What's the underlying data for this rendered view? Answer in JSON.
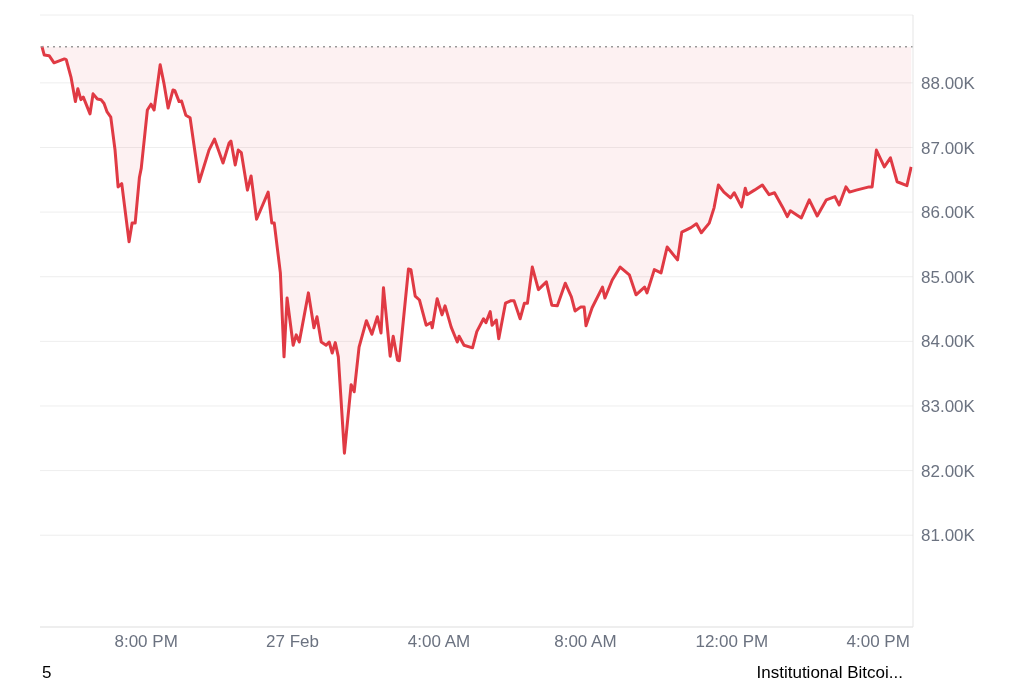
{
  "chart_data": {
    "type": "line",
    "xlim": [
      "--02-26T17:06",
      "--02-27T16:57"
    ],
    "ylim": [
      79580,
      89050
    ],
    "xticks": [
      {
        "value": "--02-26T20:00",
        "label": "8:00 PM"
      },
      {
        "value": "--02-27T00:00",
        "label": "27 Feb"
      },
      {
        "value": "--02-27T04:00",
        "label": "4:00 AM"
      },
      {
        "value": "--02-27T08:00",
        "label": "8:00 AM"
      },
      {
        "value": "--02-27T12:00",
        "label": "12:00 PM"
      },
      {
        "value": "--02-27T16:00",
        "label": "4:00 PM"
      }
    ],
    "yticks": [
      {
        "value": 81000,
        "label": "81.00K"
      },
      {
        "value": 82000,
        "label": "82.00K"
      },
      {
        "value": 83000,
        "label": "83.00K"
      },
      {
        "value": 84000,
        "label": "84.00K"
      },
      {
        "value": 85000,
        "label": "85.00K"
      },
      {
        "value": 86000,
        "label": "86.00K"
      },
      {
        "value": 87000,
        "label": "87.00K"
      },
      {
        "value": 88000,
        "label": "88.00K"
      }
    ],
    "grid": "y",
    "legend": false,
    "marker": "none",
    "line_style": "solid",
    "ref_lines": [
      {
        "axis": "y",
        "value": 88560,
        "color": "#999999",
        "line_style": "dotted"
      }
    ],
    "annotations": [
      "5",
      "Institutional Bitcoi..."
    ],
    "x": [
      "--02-26T17:09",
      "--02-26T17:13",
      "--02-26T17:21",
      "--02-26T17:29",
      "--02-26T17:46",
      "--02-26T17:49",
      "--02-26T17:57",
      "--02-26T18:04",
      "--02-26T18:08",
      "--02-26T18:13",
      "--02-26T18:17",
      "--02-26T18:28",
      "--02-26T18:33",
      "--02-26T18:40",
      "--02-26T18:46",
      "--02-26T18:51",
      "--02-26T18:56",
      "--02-26T19:02",
      "--02-26T19:09",
      "--02-26T19:14",
      "--02-26T19:20",
      "--02-26T19:32",
      "--02-26T19:37",
      "--02-26T19:42",
      "--02-26T19:49",
      "--02-26T19:52",
      "--02-26T20:02",
      "--02-26T20:08",
      "--02-26T20:13",
      "--02-26T20:23",
      "--02-26T20:29",
      "--02-26T20:36",
      "--02-26T20:44",
      "--02-26T20:47",
      "--02-26T20:54",
      "--02-26T20:58",
      "--02-26T21:05",
      "--02-26T21:12",
      "--02-26T21:27",
      "--02-26T21:43",
      "--02-26T21:52",
      "--02-26T22:06",
      "--02-26T22:16",
      "--02-26T22:19",
      "--02-26T22:26",
      "--02-26T22:31",
      "--02-26T22:36",
      "--02-26T22:46",
      "--02-26T22:52",
      "--02-26T23:01",
      "--02-26T23:20",
      "--02-26T23:26",
      "--02-26T23:30",
      "--02-26T23:40",
      "--02-26T23:46",
      "--02-26T23:51",
      "--02-27T00:01",
      "--02-27T00:06",
      "--02-27T00:11",
      "--02-27T00:26",
      "--02-27T00:35",
      "--02-27T00:40",
      "--02-27T00:47",
      "--02-27T00:55",
      "--02-27T01:00",
      "--02-27T01:05",
      "--02-27T01:10",
      "--02-27T01:15",
      "--02-27T01:25",
      "--02-27T01:36",
      "--02-27T01:41",
      "--02-27T01:49",
      "--02-27T02:01",
      "--02-27T02:10",
      "--02-27T02:19",
      "--02-27T02:25",
      "--02-27T02:29",
      "--02-27T02:40",
      "--02-27T02:45",
      "--02-27T02:52",
      "--02-27T02:55",
      "--02-27T03:10",
      "--02-27T03:14",
      "--02-27T03:21",
      "--02-27T03:28",
      "--02-27T03:39",
      "--02-27T03:47",
      "--02-27T03:49",
      "--02-27T03:57",
      "--02-27T04:05",
      "--02-27T04:10",
      "--02-27T04:20",
      "--02-27T04:30",
      "--02-27T04:33",
      "--02-27T04:41",
      "--02-27T04:55",
      "--02-27T05:02",
      "--02-27T05:13",
      "--02-27T05:17",
      "--02-27T05:24",
      "--02-27T05:27",
      "--02-27T05:34",
      "--02-27T05:38",
      "--02-27T05:49",
      "--02-27T05:58",
      "--02-27T06:03",
      "--02-27T06:13",
      "--02-27T06:20",
      "--02-27T06:25",
      "--02-27T06:33",
      "--02-27T06:43",
      "--02-27T06:56",
      "--02-27T07:05",
      "--02-27T07:14",
      "--02-27T07:27",
      "--02-27T07:37",
      "--02-27T07:43",
      "--02-27T07:52",
      "--02-27T07:58",
      "--02-27T08:01",
      "--02-27T08:11",
      "--02-27T08:28",
      "--02-27T08:32",
      "--02-27T08:44",
      "--02-27T08:57",
      "--02-27T09:12",
      "--02-27T09:23",
      "--02-27T09:37",
      "--02-27T09:41",
      "--02-27T09:53",
      "--02-27T10:04",
      "--02-27T10:14",
      "--02-27T10:31",
      "--02-27T10:38",
      "--02-27T10:53",
      "--02-27T11:02",
      "--02-27T11:10",
      "--02-27T11:23",
      "--02-27T11:31",
      "--02-27T11:38",
      "--02-27T11:47",
      "--02-27T11:58",
      "--02-27T12:04",
      "--02-27T12:16",
      "--02-27T12:22",
      "--02-27T12:25",
      "--02-27T12:37",
      "--02-27T12:50",
      "--02-27T13:01",
      "--02-27T13:10",
      "--02-27T13:23",
      "--02-27T13:31",
      "--02-27T13:36",
      "--02-27T13:54",
      "--02-27T14:07",
      "--02-27T14:20",
      "--02-27T14:35",
      "--02-27T14:49",
      "--02-27T14:56",
      "--02-27T15:07",
      "--02-27T15:13",
      "--02-27T15:24",
      "--02-27T15:45",
      "--02-27T15:50",
      "--02-27T15:57",
      "--02-27T16:10",
      "--02-27T16:20",
      "--02-27T16:31",
      "--02-27T16:47",
      "--02-27T16:54"
    ],
    "series": [
      {
        "color": "#e03a44",
        "values": [
          88570,
          88430,
          88420,
          88310,
          88370,
          88360,
          88080,
          87710,
          87910,
          87740,
          87780,
          87520,
          87830,
          87750,
          87740,
          87680,
          87550,
          87470,
          86960,
          86390,
          86440,
          85540,
          85830,
          85830,
          86540,
          86680,
          87580,
          87670,
          87580,
          88280,
          88000,
          87610,
          87890,
          87880,
          87710,
          87720,
          87500,
          87460,
          86470,
          86960,
          87130,
          86760,
          87070,
          87100,
          86730,
          86960,
          86920,
          86340,
          86560,
          85890,
          86310,
          85830,
          85830,
          85060,
          83760,
          84670,
          83940,
          84100,
          83990,
          84750,
          84210,
          84380,
          83990,
          83940,
          83990,
          83820,
          83980,
          83760,
          82270,
          83330,
          83220,
          83910,
          84320,
          84110,
          84380,
          84130,
          84830,
          83770,
          84080,
          83710,
          83700,
          85120,
          85110,
          84700,
          84640,
          84250,
          84290,
          84210,
          84660,
          84410,
          84550,
          84220,
          83990,
          84080,
          83940,
          83900,
          84150,
          84350,
          84290,
          84460,
          84250,
          84330,
          84040,
          84590,
          84630,
          84630,
          84350,
          84590,
          84590,
          85150,
          84800,
          84920,
          84560,
          84550,
          84900,
          84690,
          84470,
          84530,
          84530,
          84240,
          84520,
          84840,
          84670,
          84950,
          85150,
          85030,
          84720,
          84840,
          84750,
          85110,
          85060,
          85460,
          85260,
          85690,
          85760,
          85820,
          85680,
          85830,
          86070,
          86420,
          86310,
          86220,
          86300,
          86080,
          86370,
          86270,
          86340,
          86420,
          86270,
          86300,
          86080,
          85930,
          86020,
          85910,
          86190,
          85940,
          86190,
          86240,
          86110,
          86390,
          86310,
          86340,
          86390,
          86390,
          86960,
          86700,
          86840,
          86470,
          86410,
          86700
        ]
      }
    ]
  }
}
